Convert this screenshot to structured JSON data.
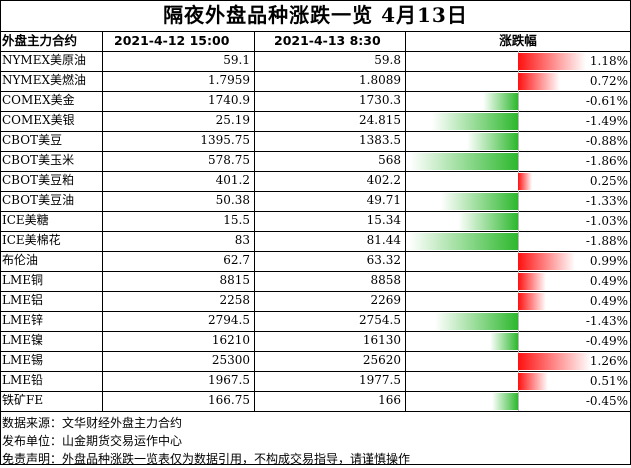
{
  "title": "隔夜外盘品种涨跌一览 4月13日",
  "headers": {
    "name": "外盘主力合约",
    "prev": "2021-4-12 15:00",
    "curr": "2021-4-13 8:30",
    "change": "涨跌幅"
  },
  "colors": {
    "up": "#ff1010",
    "down": "#2db82d"
  },
  "chart_data": {
    "type": "table",
    "rows": [
      {
        "name": "NYMEX美原油",
        "prev": "59.1",
        "curr": "59.8",
        "change": 1.18,
        "change_text": "1.18%"
      },
      {
        "name": "NYMEX美燃油",
        "prev": "1.7959",
        "curr": "1.8089",
        "change": 0.72,
        "change_text": "0.72%"
      },
      {
        "name": "COMEX美金",
        "prev": "1740.9",
        "curr": "1730.3",
        "change": -0.61,
        "change_text": "-0.61%"
      },
      {
        "name": "COMEX美银",
        "prev": "25.19",
        "curr": "24.815",
        "change": -1.49,
        "change_text": "-1.49%"
      },
      {
        "name": "CBOT美豆",
        "prev": "1395.75",
        "curr": "1383.5",
        "change": -0.88,
        "change_text": "-0.88%"
      },
      {
        "name": "CBOT美玉米",
        "prev": "578.75",
        "curr": "568",
        "change": -1.86,
        "change_text": "-1.86%"
      },
      {
        "name": "CBOT美豆粕",
        "prev": "401.2",
        "curr": "402.2",
        "change": 0.25,
        "change_text": "0.25%"
      },
      {
        "name": "CBOT美豆油",
        "prev": "50.38",
        "curr": "49.71",
        "change": -1.33,
        "change_text": "-1.33%"
      },
      {
        "name": "ICE美糖",
        "prev": "15.5",
        "curr": "15.34",
        "change": -1.03,
        "change_text": "-1.03%"
      },
      {
        "name": "ICE美棉花",
        "prev": "83",
        "curr": "81.44",
        "change": -1.88,
        "change_text": "-1.88%"
      },
      {
        "name": "布伦油",
        "prev": "62.7",
        "curr": "63.32",
        "change": 0.99,
        "change_text": "0.99%"
      },
      {
        "name": "LME铜",
        "prev": "8815",
        "curr": "8858",
        "change": 0.49,
        "change_text": "0.49%"
      },
      {
        "name": "LME铝",
        "prev": "2258",
        "curr": "2269",
        "change": 0.49,
        "change_text": "0.49%"
      },
      {
        "name": "LME锌",
        "prev": "2794.5",
        "curr": "2754.5",
        "change": -1.43,
        "change_text": "-1.43%"
      },
      {
        "name": "LME镍",
        "prev": "16210",
        "curr": "16130",
        "change": -0.49,
        "change_text": "-0.49%"
      },
      {
        "name": "LME锡",
        "prev": "25300",
        "curr": "25620",
        "change": 1.26,
        "change_text": "1.26%"
      },
      {
        "name": "LME铅",
        "prev": "1967.5",
        "curr": "1977.5",
        "change": 0.51,
        "change_text": "0.51%"
      },
      {
        "name": "铁矿FE",
        "prev": "166.75",
        "curr": "166",
        "change": -0.45,
        "change_text": "-0.45%"
      }
    ]
  },
  "footer": [
    "数据来源：文华财经外盘主力合约",
    "发布单位：山金期货交易运作中心",
    "免责声明：外盘品种涨跌一览表仅为数据引用，不构成交易指导，请谨慎操作"
  ]
}
